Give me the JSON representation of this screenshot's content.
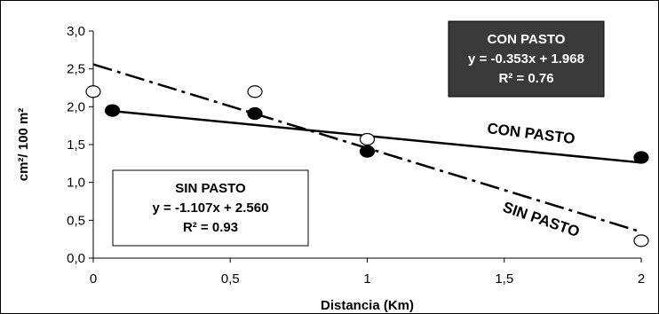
{
  "chart_data": {
    "type": "scatter",
    "xlabel": "Distancia (Km)",
    "ylabel": "cm²/ 100 m²",
    "xlim": [
      0,
      2
    ],
    "ylim": [
      0,
      3
    ],
    "x_ticks": [
      "0",
      "0,5",
      "1",
      "1,5",
      "2"
    ],
    "y_ticks": [
      "0,0",
      "0,5",
      "1,0",
      "1,5",
      "2,0",
      "2,5",
      "3,0"
    ],
    "grid": false,
    "series": [
      {
        "name": "CON PASTO",
        "marker": "filled",
        "color": "#000000",
        "points": [
          {
            "x": 0.07,
            "y": 1.95
          },
          {
            "x": 0.59,
            "y": 1.91
          },
          {
            "x": 1.0,
            "y": 1.41
          },
          {
            "x": 2.0,
            "y": 1.33
          }
        ],
        "fit": {
          "slope": -0.353,
          "intercept": 1.968,
          "style": "solid"
        },
        "box": {
          "title": "CON PASTO",
          "equation": "y = -0.353x + 1.968",
          "r2": "R² = 0.76",
          "background": "#3a3a3a",
          "text_color": "#ffffff"
        },
        "curve_label": "CON PASTO"
      },
      {
        "name": "SIN PASTO",
        "marker": "hollow",
        "color": "#000000",
        "points": [
          {
            "x": 0.0,
            "y": 2.2
          },
          {
            "x": 0.59,
            "y": 2.2
          },
          {
            "x": 1.0,
            "y": 1.57
          },
          {
            "x": 2.0,
            "y": 0.23
          }
        ],
        "fit": {
          "slope": -1.107,
          "intercept": 2.56,
          "style": "dash-dot"
        },
        "box": {
          "title": "SIN PASTO",
          "equation": "y = -1.107x + 2.560",
          "r2": "R² = 0.93",
          "background": "#ffffff",
          "text_color": "#000000"
        },
        "curve_label": "SIN PASTO"
      }
    ]
  }
}
